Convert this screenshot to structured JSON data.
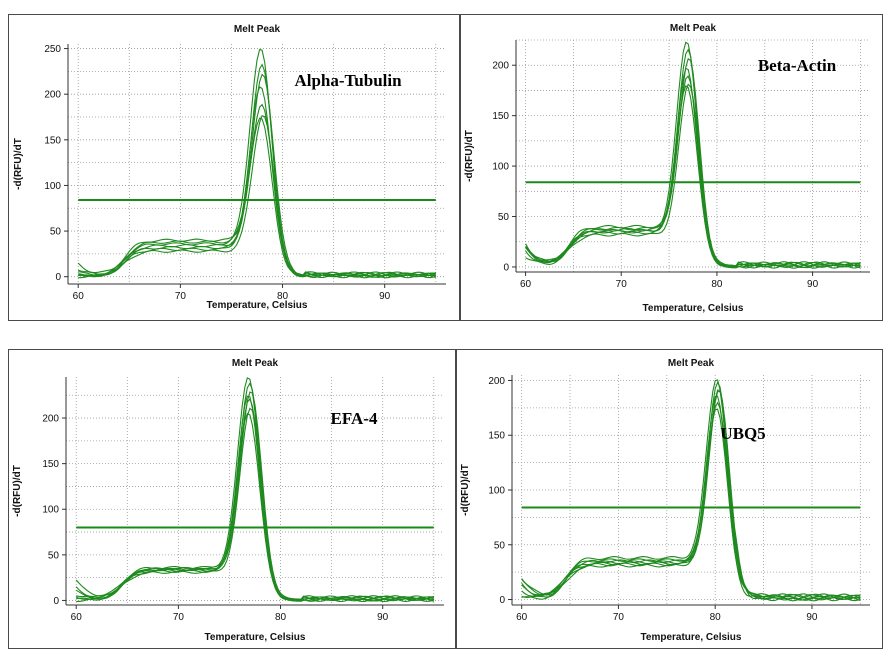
{
  "colors": {
    "curve": "#1f8a1f",
    "threshold": "#1a8a1a",
    "grid": "#9a9a9a",
    "axis": "#333333"
  },
  "chart_data": [
    {
      "type": "line",
      "title": "Melt Peak",
      "gene_label": "Alpha-Tubulin",
      "xlabel": "Temperature, Celsius",
      "ylabel": "-d(RFU)/dT",
      "xlim": [
        59,
        96
      ],
      "ylim": [
        -8,
        255
      ],
      "xticks": [
        60,
        70,
        80,
        90
      ],
      "yticks": [
        0,
        50,
        100,
        150,
        200,
        250
      ],
      "threshold": 84,
      "peak_temperature": 78,
      "series": [
        {
          "baseline": 5,
          "shoulder": 36,
          "peak": 241
        },
        {
          "baseline": 2,
          "shoulder": 32,
          "peak": 224
        },
        {
          "baseline": 14,
          "shoulder": 40,
          "peak": 213
        },
        {
          "baseline": 3,
          "shoulder": 30,
          "peak": 201
        },
        {
          "baseline": 0,
          "shoulder": 34,
          "peak": 182
        },
        {
          "baseline": 8,
          "shoulder": 28,
          "peak": 172
        },
        {
          "baseline": 1,
          "shoulder": 38,
          "peak": 165
        }
      ]
    },
    {
      "type": "line",
      "title": "Melt Peak",
      "gene_label": "Beta-Actin",
      "xlabel": "Temperature, Celsius",
      "ylabel": "-d(RFU)/dT",
      "xlim": [
        59,
        96
      ],
      "ylim": [
        -5,
        225
      ],
      "xticks": [
        60,
        70,
        80,
        90
      ],
      "yticks": [
        0,
        50,
        100,
        150,
        200
      ],
      "threshold": 84,
      "peak_temperature": 77,
      "series": [
        {
          "baseline": 20,
          "shoulder": 38,
          "peak": 215
        },
        {
          "baseline": 18,
          "shoulder": 36,
          "peak": 208
        },
        {
          "baseline": 22,
          "shoulder": 40,
          "peak": 198
        },
        {
          "baseline": 16,
          "shoulder": 34,
          "peak": 188
        },
        {
          "baseline": 21,
          "shoulder": 37,
          "peak": 180
        },
        {
          "baseline": 10,
          "shoulder": 32,
          "peak": 175
        },
        {
          "baseline": 19,
          "shoulder": 35,
          "peak": 172
        }
      ]
    },
    {
      "type": "line",
      "title": "Melt Peak",
      "gene_label": "EFA-4",
      "xlabel": "Temperature, Celsius",
      "ylabel": "-d(RFU)/dT",
      "xlim": [
        59,
        96
      ],
      "ylim": [
        -5,
        245
      ],
      "xticks": [
        60,
        70,
        80,
        90
      ],
      "yticks": [
        0,
        50,
        100,
        150,
        200
      ],
      "threshold": 80,
      "peak_temperature": 77,
      "series": [
        {
          "baseline": 22,
          "shoulder": 36,
          "peak": 237
        },
        {
          "baseline": 10,
          "shoulder": 34,
          "peak": 231
        },
        {
          "baseline": 14,
          "shoulder": 33,
          "peak": 222
        },
        {
          "baseline": 4,
          "shoulder": 32,
          "peak": 216
        },
        {
          "baseline": 0,
          "shoulder": 35,
          "peak": 212
        },
        {
          "baseline": 6,
          "shoulder": 31,
          "peak": 205
        },
        {
          "baseline": 2,
          "shoulder": 34,
          "peak": 198
        }
      ]
    },
    {
      "type": "line",
      "title": "Melt Peak",
      "gene_label": "UBQ5",
      "xlabel": "Temperature, Celsius",
      "ylabel": "-d(RFU)/dT",
      "xlim": [
        59,
        96
      ],
      "ylim": [
        -5,
        205
      ],
      "xticks": [
        60,
        70,
        80,
        90
      ],
      "yticks": [
        0,
        50,
        100,
        150,
        200
      ],
      "threshold": 84,
      "peak_temperature": 80.3,
      "series": [
        {
          "baseline": 18,
          "shoulder": 38,
          "peak": 193
        },
        {
          "baseline": 12,
          "shoulder": 36,
          "peak": 190
        },
        {
          "baseline": 14,
          "shoulder": 34,
          "peak": 183
        },
        {
          "baseline": 8,
          "shoulder": 33,
          "peak": 177
        },
        {
          "baseline": 4,
          "shoulder": 32,
          "peak": 172
        },
        {
          "baseline": 20,
          "shoulder": 35,
          "peak": 186
        },
        {
          "baseline": 2,
          "shoulder": 31,
          "peak": 168
        }
      ]
    }
  ]
}
